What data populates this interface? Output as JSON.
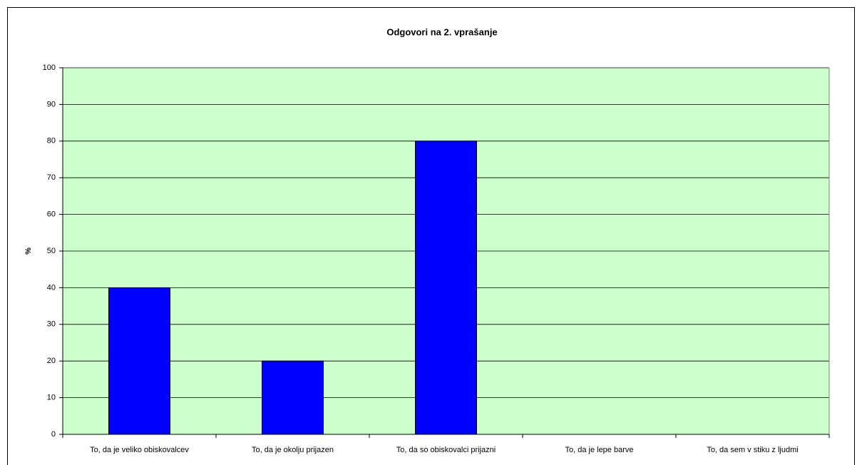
{
  "chart_data": {
    "type": "bar",
    "title": "Odgovori na 2. vprašanje",
    "y_label": "%",
    "categories": [
      "To, da je veliko obiskovalcev",
      "To, da je okolju prijazen",
      "To, da so obiskovalci prijazni",
      "To, da je lepe barve",
      "To, da sem v stiku z ljudmi"
    ],
    "values": [
      40,
      20,
      80,
      0,
      0
    ],
    "color": "#0000ff",
    "ylim": [
      0,
      100
    ],
    "yticks": [
      0,
      10,
      20,
      30,
      40,
      50,
      60,
      70,
      80,
      90,
      100
    ],
    "grid": true
  }
}
